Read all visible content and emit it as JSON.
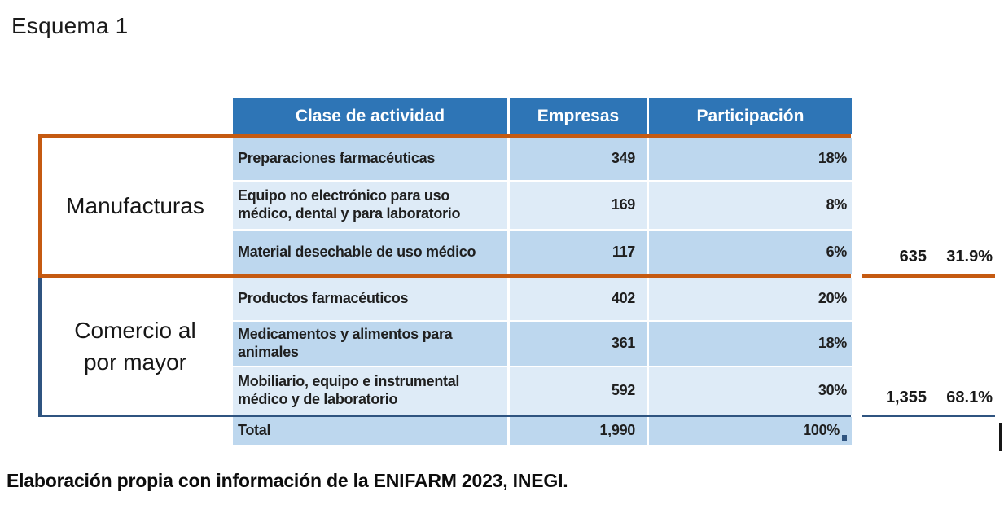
{
  "title": "Esquema 1",
  "caption": "Elaboración propia con información de la ENIFARM 2023, INEGI.",
  "colors": {
    "header_bg": "#2E75B6",
    "row_dark": "#BDD7EE",
    "row_light": "#DEEBF7",
    "orange": "#C55A11",
    "navy": "#2F5480",
    "header_text": "#FFFFFF",
    "body_text": "#1F1F1F"
  },
  "table": {
    "headers": {
      "activity": "Clase de actividad",
      "empresas": "Empresas",
      "participacion": "Participación"
    },
    "rows": [
      {
        "label": "Preparaciones farmacéuticas",
        "empresas": "349",
        "participacion": "18%"
      },
      {
        "label": "Equipo no electrónico para uso médico, dental y para laboratorio",
        "empresas": "169",
        "participacion": "8%"
      },
      {
        "label": "Material desechable de uso médico",
        "empresas": "117",
        "participacion": "6%"
      },
      {
        "label": "Productos farmacéuticos",
        "empresas": "402",
        "participacion": "20%"
      },
      {
        "label": "Medicamentos y alimentos para animales",
        "empresas": "361",
        "participacion": "18%"
      },
      {
        "label": "Mobiliario, equipo e instrumental médico y de laboratorio",
        "empresas": "592",
        "participacion": "30%"
      }
    ],
    "total": {
      "label": "Total",
      "empresas": "1,990",
      "participacion": "100%"
    }
  },
  "groups": [
    {
      "label": "Manufacturas",
      "total_empresas": "635",
      "total_participacion": "31.9%"
    },
    {
      "label": "Comercio al por mayor",
      "total_empresas": "1,355",
      "total_participacion": "68.1%"
    }
  ]
}
